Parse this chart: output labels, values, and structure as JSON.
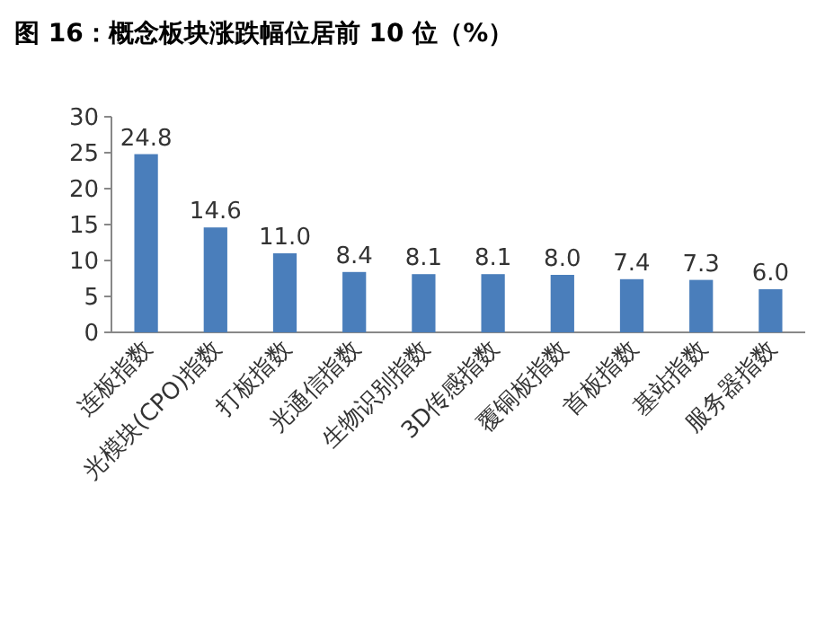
{
  "chart_data": {
    "type": "bar",
    "title": "图 16：概念板块涨跌幅位居前 10 位（%）",
    "categories": [
      "连板指数",
      "光模块(CPO)指数",
      "打板指数",
      "光通信指数",
      "生物识别指数",
      "3D传感指数",
      "覆铜板指数",
      "首板指数",
      "基站指数",
      "服务器指数"
    ],
    "values": [
      24.8,
      14.6,
      11.0,
      8.4,
      8.1,
      8.1,
      8.0,
      7.4,
      7.3,
      6.0
    ],
    "value_labels": [
      "24.8",
      "14.6",
      "11.0",
      "8.4",
      "8.1",
      "8.1",
      "8.0",
      "7.4",
      "7.3",
      "6.0"
    ],
    "color": "#4a7ebb",
    "ylim": [
      0,
      30
    ],
    "yticks": [
      0,
      5,
      10,
      15,
      20,
      25,
      30
    ]
  }
}
